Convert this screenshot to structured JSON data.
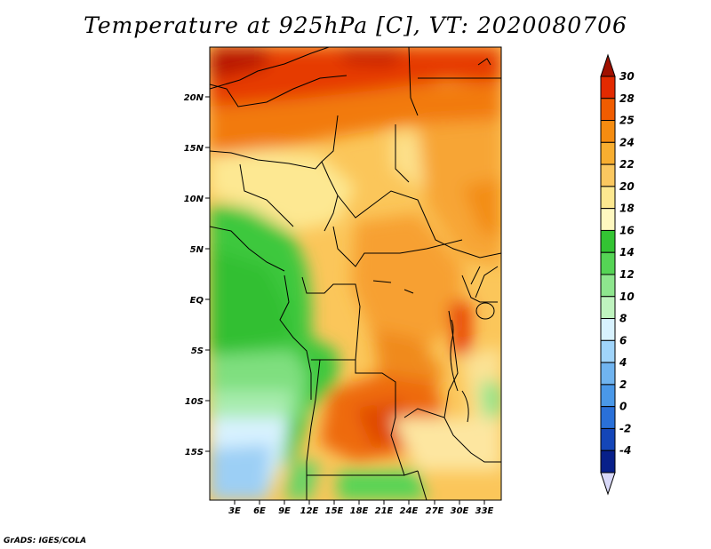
{
  "title": "Temperature at 925hPa [C], VT: 2020080706",
  "credit": "GrADS: IGES/COLA",
  "map": {
    "y_labels": [
      "20N",
      "15N",
      "10N",
      "5N",
      "EQ",
      "5S",
      "10S",
      "15S"
    ],
    "x_labels": [
      "3E",
      "6E",
      "9E",
      "12E",
      "15E",
      "18E",
      "21E",
      "24E",
      "27E",
      "30E",
      "33E"
    ]
  },
  "colorbar": {
    "levels": [
      "30",
      "28",
      "25",
      "24",
      "22",
      "20",
      "18",
      "16",
      "14",
      "12",
      "10",
      "8",
      "6",
      "4",
      "2",
      "0",
      "-2",
      "-4"
    ],
    "colors": [
      "#a01000",
      "#e32a00",
      "#f05c00",
      "#f58c10",
      "#f8ae30",
      "#fbc860",
      "#fde890",
      "#fff8c0",
      "#33c433",
      "#55d455",
      "#8ee68e",
      "#bff3bf",
      "#d8f2ff",
      "#a0d4fa",
      "#70b4f0",
      "#4a98e8",
      "#2a70d8",
      "#1446b8",
      "#08208a",
      "#d8d8f8"
    ]
  }
}
